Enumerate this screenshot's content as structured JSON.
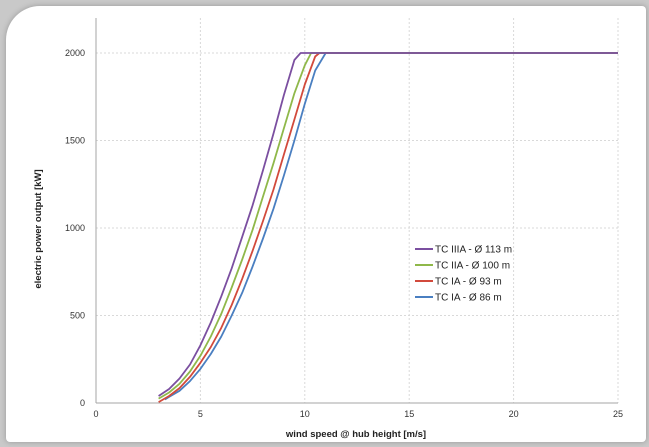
{
  "chart_data": {
    "type": "line",
    "xlabel": "wind speed @ hub height [m/s]",
    "ylabel": "electric power output [kW]",
    "xlim": [
      0,
      25
    ],
    "ylim": [
      0,
      2000
    ],
    "x_ticks": [
      0,
      5,
      10,
      15,
      20,
      25
    ],
    "y_ticks": [
      0,
      500,
      1000,
      1500,
      2000
    ],
    "grid": true,
    "legend_position": "center-right",
    "series": [
      {
        "name": "TC IIIA - Ø 113 m",
        "color": "#7b4fa0",
        "x": [
          3,
          3.5,
          4,
          4.5,
          5,
          5.5,
          6,
          6.5,
          7,
          7.5,
          8,
          8.5,
          9,
          9.5,
          9.8,
          10,
          25
        ],
        "y": [
          40,
          80,
          140,
          220,
          330,
          460,
          610,
          770,
          950,
          1130,
          1330,
          1540,
          1760,
          1960,
          2000,
          2000,
          2000
        ]
      },
      {
        "name": "TC IIA - Ø 100 m",
        "color": "#8fb84a",
        "x": [
          3,
          3.5,
          4,
          4.5,
          5,
          5.5,
          6,
          6.5,
          7,
          7.5,
          8,
          8.5,
          9,
          9.5,
          10,
          10.3,
          10.5,
          25
        ],
        "y": [
          25,
          60,
          110,
          180,
          270,
          380,
          510,
          660,
          820,
          990,
          1180,
          1370,
          1570,
          1770,
          1930,
          2000,
          2000,
          2000
        ]
      },
      {
        "name": "TC IA - Ø 93 m",
        "color": "#d24a3c",
        "x": [
          3,
          3.5,
          4,
          4.5,
          5,
          5.5,
          6,
          6.5,
          7,
          7.5,
          8,
          8.5,
          9,
          9.5,
          10,
          10.5,
          10.7,
          25
        ],
        "y": [
          5,
          40,
          85,
          150,
          230,
          320,
          430,
          560,
          710,
          870,
          1040,
          1220,
          1420,
          1620,
          1820,
          1980,
          2000,
          2000
        ]
      },
      {
        "name": "TC IA - Ø 86 m",
        "color": "#4a7fc1",
        "x": [
          3.3,
          3.5,
          4,
          4.5,
          5,
          5.5,
          6,
          6.5,
          7,
          7.5,
          8,
          8.5,
          9,
          9.5,
          10,
          10.5,
          11,
          25
        ],
        "y": [
          20,
          35,
          70,
          125,
          195,
          280,
          380,
          500,
          630,
          780,
          940,
          1110,
          1300,
          1500,
          1710,
          1900,
          2000,
          2000
        ]
      }
    ]
  }
}
